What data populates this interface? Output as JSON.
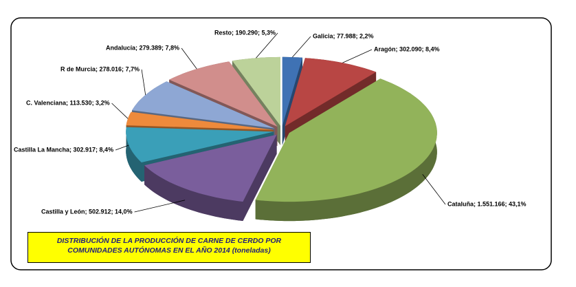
{
  "chart_data": {
    "type": "pie3d",
    "title": "DISTRIBUCIÓN DE LA PRODUCCIÓN DE CARNE DE CERDO POR COMUNIDADES AUTÓNOMAS EN EL AÑO 2014 (toneladas)",
    "values": [
      77988,
      302090,
      1551166,
      502912,
      302917,
      113530,
      278016,
      279389,
      190290
    ],
    "value_labels": [
      "Galicia; 77.988; 2,2%",
      "Aragón; 302.090; 8,4%",
      "Cataluña; 1.551.166; 43,1%",
      "Castilla y León; 502.912; 14,0%",
      "Castilla La Mancha; 302.917; 8,4%",
      "C. Valenciana; 113.530; 3,2%",
      "R de Murcia; 278.016; 7,7%",
      "Andalucía; 279.389; 7,8%",
      "Resto; 190.290; 5,3%"
    ],
    "colors": [
      "#3f72b4",
      "#b84644",
      "#92b35a",
      "#7a5e9c",
      "#3a9fb8",
      "#ee8a3c",
      "#8ea7d4",
      "#d18e8c",
      "#bcd29a"
    ]
  }
}
